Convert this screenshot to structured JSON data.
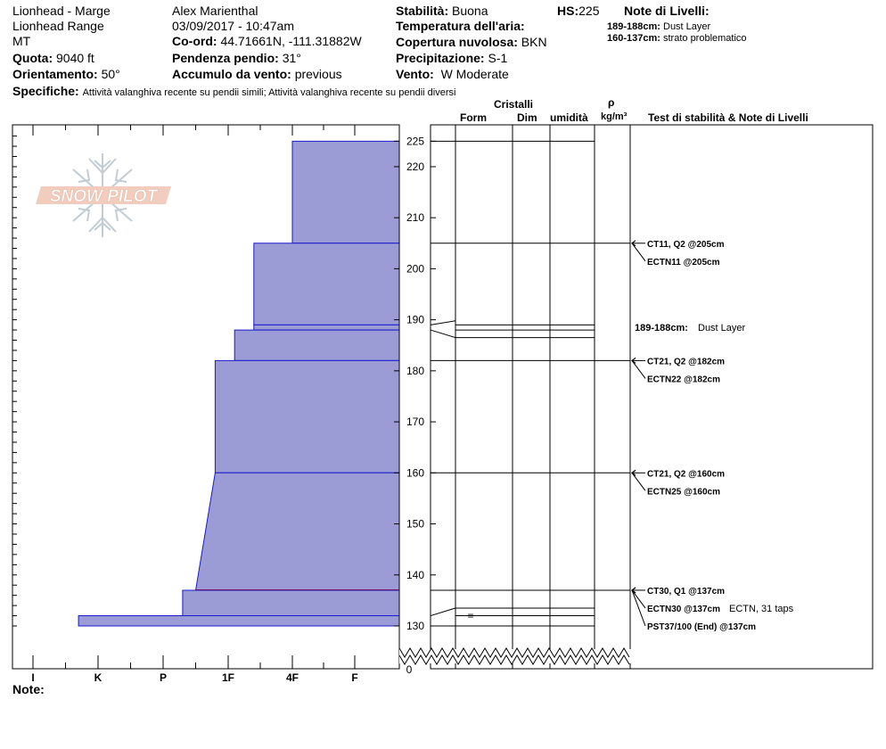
{
  "header": {
    "location": "Lionhead - Marge",
    "range": "Lionhead Range",
    "state": "MT",
    "elevation_label": "Quota:",
    "elevation": "9040 ft",
    "aspect_label": "Orientamento:",
    "aspect": "50°",
    "observer": "Alex Marienthal",
    "datetime": "03/09/2017 - 10:47am",
    "coord_label": "Co-ord:",
    "coord": "44.71661N, -111.31882W",
    "slope_label": "Pendenza pendio:",
    "slope": "31°",
    "wind_loading_label": "Accumulo da vento:",
    "wind_loading": "previous",
    "stability_label": "Stabilità:",
    "stability": "Buona",
    "air_temp_label": "Temperatura dell'aria:",
    "air_temp": "",
    "cloud_label": "Copertura nuvolosa:",
    "cloud": "BKN",
    "precip_label": "Precipitazione:",
    "precip": "S-1",
    "wind_label": "Vento:",
    "wind": "W Moderate",
    "hs_label": "HS:",
    "hs": "225",
    "layer_notes_label": "Note di Livelli:",
    "layer_notes": [
      {
        "range": "189-188cm:",
        "text": "Dust Layer"
      },
      {
        "range": "160-137cm:",
        "text": "strato problematico"
      }
    ],
    "specifics_label": "Specifiche:",
    "specifics": "Attività valanghiva recente su pendii simili;  Attività valanghiva recente su pendii diversi",
    "note_label": "Note:"
  },
  "logo_text": "SNOW PILOT",
  "columns": {
    "crystals": "Cristalli",
    "form": "Form",
    "dim": "Dim",
    "moisture": "umidità",
    "rho": "ρ",
    "density_unit": "kg/m³",
    "tests_notes": "Test di stabilità & Note di Livelli"
  },
  "chart_data": {
    "type": "snow-profile",
    "hardness_ticks": [
      "I",
      "K",
      "P",
      "1F",
      "4F",
      "F"
    ],
    "height_ticks": [
      130,
      140,
      150,
      160,
      170,
      180,
      190,
      200,
      210,
      220,
      225
    ],
    "height_zero_label": "0",
    "y_range": [
      128,
      227
    ],
    "layers": [
      {
        "top": 225,
        "bottom": 205,
        "hardness": 4.0
      },
      {
        "top": 205,
        "bottom": 189,
        "hardness": 3.4
      },
      {
        "top": 189,
        "bottom": 188,
        "hardness": 3.4
      },
      {
        "top": 188,
        "bottom": 182,
        "hardness": 3.1
      },
      {
        "top": 182,
        "bottom": 160,
        "hardness": 2.8
      },
      {
        "top": 160,
        "bottom": 137,
        "hardness": 2.8,
        "bottom_hardness": 2.5,
        "problem_bottom": true
      },
      {
        "top": 137,
        "bottom": 132,
        "hardness": 2.3
      },
      {
        "top": 132,
        "bottom": 130,
        "hardness": 0.7
      }
    ],
    "layer_boundaries": [
      225,
      205,
      189,
      188,
      186.5,
      182,
      160,
      137,
      133.5,
      132,
      130
    ],
    "grain_form_symbols": [
      {
        "height": 132,
        "symbol": "="
      }
    ],
    "tests": [
      {
        "height": 205,
        "labels": [
          "CT11, Q2 @205cm",
          "ECTN11 @205cm"
        ],
        "extra": ""
      },
      {
        "height": 182,
        "labels": [
          "CT21, Q2 @182cm",
          "ECTN22 @182cm"
        ],
        "extra": ""
      },
      {
        "height": 160,
        "labels": [
          "CT21, Q2 @160cm",
          "ECTN25 @160cm"
        ],
        "extra": ""
      },
      {
        "height": 137,
        "labels": [
          "CT30, Q1 @137cm",
          "ECTN30 @137cm",
          "PST37/100 (End) @137cm"
        ],
        "extra": "ECTN, 31 taps"
      }
    ],
    "notes": [
      {
        "height": 188.5,
        "range": "189-188cm:",
        "text": "Dust Layer"
      }
    ]
  }
}
